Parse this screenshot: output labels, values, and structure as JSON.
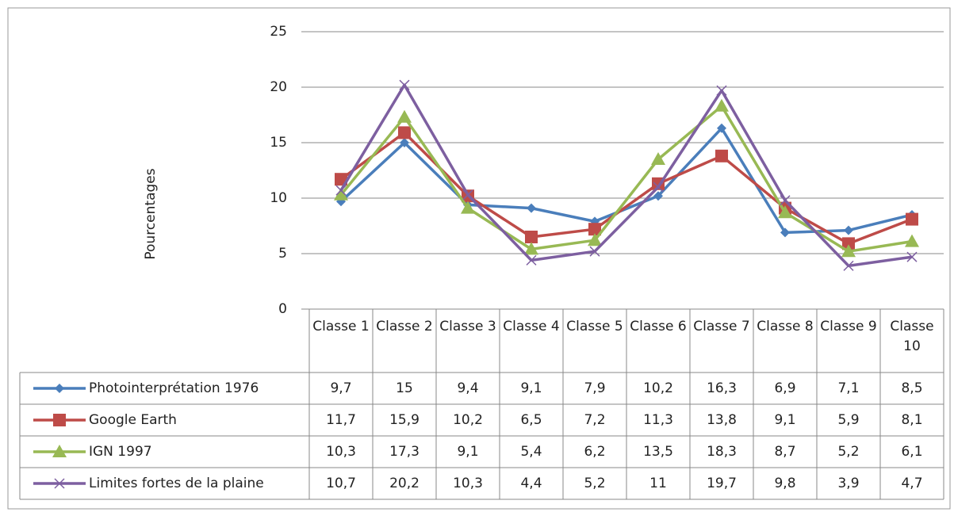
{
  "chart_data": {
    "type": "line",
    "y_label": "Pourcentages",
    "categories": [
      "Classe 1",
      "Classe 2",
      "Classe 3",
      "Classe 4",
      "Classe 5",
      "Classe 6",
      "Classe 7",
      "Classe 8",
      "Classe 9",
      "Classe 10"
    ],
    "ylim": [
      0,
      25
    ],
    "yticks": [
      0,
      5,
      10,
      15,
      20,
      25
    ],
    "grid": true,
    "series": [
      {
        "name": "Photointerprétation 1976",
        "color": "#4a7ebb",
        "marker": "diamond",
        "values": [
          9.7,
          15,
          9.4,
          9.1,
          7.9,
          10.2,
          16.3,
          6.9,
          7.1,
          8.5
        ],
        "value_labels": [
          "9,7",
          "15",
          "9,4",
          "9,1",
          "7,9",
          "10,2",
          "16,3",
          "6,9",
          "7,1",
          "8,5"
        ]
      },
      {
        "name": "Google Earth",
        "color": "#be4b48",
        "marker": "square",
        "values": [
          11.7,
          15.9,
          10.2,
          6.5,
          7.2,
          11.3,
          13.8,
          9.1,
          5.9,
          8.1
        ],
        "value_labels": [
          "11,7",
          "15,9",
          "10,2",
          "6,5",
          "7,2",
          "11,3",
          "13,8",
          "9,1",
          "5,9",
          "8,1"
        ]
      },
      {
        "name": "IGN 1997",
        "color": "#98b954",
        "marker": "triangle",
        "values": [
          10.3,
          17.3,
          9.1,
          5.4,
          6.2,
          13.5,
          18.3,
          8.7,
          5.2,
          6.1
        ],
        "value_labels": [
          "10,3",
          "17,3",
          "9,1",
          "5,4",
          "6,2",
          "13,5",
          "18,3",
          "8,7",
          "5,2",
          "6,1"
        ]
      },
      {
        "name": "Limites fortes de la plaine",
        "color": "#7d5fa0",
        "marker": "x",
        "values": [
          10.7,
          20.2,
          10.3,
          4.4,
          5.2,
          11,
          19.7,
          9.8,
          3.9,
          4.7
        ],
        "value_labels": [
          "10,7",
          "20,2",
          "10,3",
          "4,4",
          "5,2",
          "11",
          "19,7",
          "9,8",
          "3,9",
          "4,7"
        ]
      }
    ]
  }
}
